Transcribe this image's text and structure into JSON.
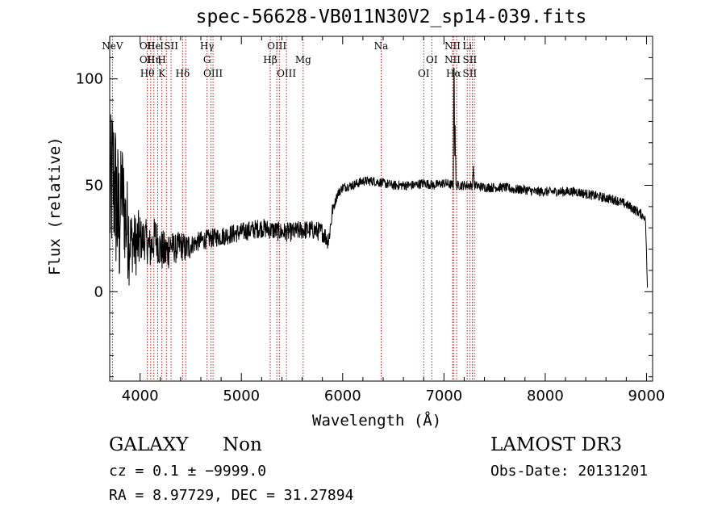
{
  "chart_data": {
    "type": "line",
    "title": "spec-56628-VB011N30V2_sp14-039.fits",
    "xlabel": "Wavelength (Å)",
    "ylabel": "Flux (relative)",
    "xlim": [
      3700,
      9060
    ],
    "ylim": [
      -42,
      120
    ],
    "xticks": [
      4000,
      5000,
      6000,
      7000,
      8000,
      9000
    ],
    "yticks": [
      0,
      50,
      100
    ],
    "series": [
      {
        "name": "flux",
        "anchors": [
          [
            3700,
            40
          ],
          [
            3730,
            55
          ],
          [
            3760,
            45
          ],
          [
            3790,
            30
          ],
          [
            3820,
            50
          ],
          [
            3850,
            35
          ],
          [
            3900,
            25
          ],
          [
            3950,
            22
          ],
          [
            4000,
            24
          ],
          [
            4050,
            25
          ],
          [
            4100,
            20
          ],
          [
            4150,
            26
          ],
          [
            4200,
            20
          ],
          [
            4250,
            18
          ],
          [
            4300,
            22
          ],
          [
            4350,
            20
          ],
          [
            4400,
            22
          ],
          [
            4450,
            20
          ],
          [
            4500,
            22
          ],
          [
            4600,
            24
          ],
          [
            4700,
            25
          ],
          [
            4800,
            26
          ],
          [
            4900,
            27
          ],
          [
            5000,
            28
          ],
          [
            5100,
            29
          ],
          [
            5200,
            30
          ],
          [
            5300,
            29
          ],
          [
            5400,
            28
          ],
          [
            5500,
            28
          ],
          [
            5600,
            29
          ],
          [
            5700,
            29
          ],
          [
            5800,
            28
          ],
          [
            5860,
            24
          ],
          [
            5900,
            38
          ],
          [
            5950,
            46
          ],
          [
            6000,
            49
          ],
          [
            6100,
            50
          ],
          [
            6200,
            52
          ],
          [
            6300,
            52
          ],
          [
            6400,
            51
          ],
          [
            6500,
            50
          ],
          [
            6600,
            50
          ],
          [
            6700,
            50
          ],
          [
            6800,
            51
          ],
          [
            6900,
            50
          ],
          [
            7000,
            51
          ],
          [
            7100,
            50
          ],
          [
            7200,
            50
          ],
          [
            7300,
            50
          ],
          [
            7400,
            49
          ],
          [
            7500,
            49
          ],
          [
            7600,
            49
          ],
          [
            7700,
            48
          ],
          [
            7800,
            48
          ],
          [
            7900,
            47
          ],
          [
            8000,
            47
          ],
          [
            8100,
            47
          ],
          [
            8200,
            47
          ],
          [
            8300,
            47
          ],
          [
            8400,
            46
          ],
          [
            8500,
            45
          ],
          [
            8600,
            44
          ],
          [
            8700,
            43
          ],
          [
            8800,
            41
          ],
          [
            8900,
            38
          ],
          [
            8960,
            36
          ],
          [
            8990,
            34
          ],
          [
            9010,
            0
          ]
        ],
        "features": [
          {
            "wavelength": 7100,
            "peak": 105
          },
          {
            "wavelength": 7110,
            "peak": 78
          },
          {
            "wavelength": 7290,
            "peak": 59
          }
        ]
      }
    ],
    "lines": [
      {
        "wavelength": 3727,
        "label": "NeV",
        "row": 1
      },
      {
        "wavelength": 4071,
        "label": "OII",
        "row": 1
      },
      {
        "wavelength": 4071,
        "label": "OII",
        "row": 2
      },
      {
        "wavelength": 4071,
        "label": "Hθ",
        "row": 3
      },
      {
        "wavelength": 4136,
        "label": "He",
        "row": 1
      },
      {
        "wavelength": 4136,
        "label": "Hη",
        "row": 2
      },
      {
        "wavelength": 4215,
        "label": "I",
        "row": 1
      },
      {
        "wavelength": 4215,
        "label": "H",
        "row": 2
      },
      {
        "wavelength": 4215,
        "label": "K",
        "row": 3
      },
      {
        "wavelength": 4306,
        "label": "SII",
        "row": 1
      },
      {
        "wavelength": 4420,
        "label": "Hδ",
        "row": 3
      },
      {
        "wavelength": 4661,
        "label": "Hγ",
        "row": 1
      },
      {
        "wavelength": 4661,
        "label": "G",
        "row": 2
      },
      {
        "wavelength": 4720,
        "label": "OIII",
        "row": 3
      },
      {
        "wavelength": 5285,
        "label": "Hβ",
        "row": 2
      },
      {
        "wavelength": 5350,
        "label": "OIII",
        "row": 1
      },
      {
        "wavelength": 5445,
        "label": "OIII",
        "row": 3
      },
      {
        "wavelength": 5610,
        "label": "Mg",
        "row": 2
      },
      {
        "wavelength": 6380,
        "label": "Na",
        "row": 1
      },
      {
        "wavelength": 6880,
        "label": "OI",
        "row": 2
      },
      {
        "wavelength": 6800,
        "label": "OI",
        "row": 3
      },
      {
        "wavelength": 7085,
        "label": "NII",
        "row": 1
      },
      {
        "wavelength": 7085,
        "label": "NII",
        "row": 2
      },
      {
        "wavelength": 7095,
        "label": "Hα",
        "row": 3
      },
      {
        "wavelength": 7230,
        "label": "Li",
        "row": 1
      },
      {
        "wavelength": 7255,
        "label": "SII",
        "row": 2
      },
      {
        "wavelength": 7255,
        "label": "SII",
        "row": 3
      }
    ],
    "extra_line_wavelengths": [
      4105,
      4174,
      4260,
      4450,
      4700,
      5375,
      7125,
      7280,
      7300
    ],
    "grid": false
  },
  "info": {
    "object_class": "GALAXY",
    "subclass": "Non",
    "cz": "cz = 0.1 ± −9999.0",
    "coords": "RA =   8.97729, DEC =  31.27894",
    "survey": "LAMOST DR3",
    "obs_date": "Obs-Date: 20131201"
  }
}
